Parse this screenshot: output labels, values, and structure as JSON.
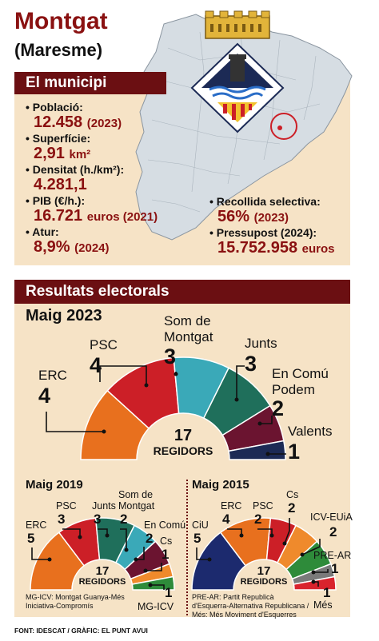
{
  "header": {
    "title": "Montgat",
    "subtitle": "(Maresme)"
  },
  "municipi": {
    "banner": "El municipi",
    "stats_left": [
      {
        "label": "Població:",
        "value": "12.458",
        "suffix": "(2023)"
      },
      {
        "label": "Superfície:",
        "value": "2,91",
        "suffix": "km²"
      },
      {
        "label": "Densitat (h./km²):",
        "value": "4.281,1",
        "suffix": ""
      },
      {
        "label": "PIB (€/h.):",
        "value": "16.721",
        "suffix": "euros (2021)"
      },
      {
        "label": "Atur:",
        "value": "8,9%",
        "suffix": "(2024)"
      }
    ],
    "stats_right": [
      {
        "label": "Recollida selectiva:",
        "value": "56%",
        "suffix": "(2023)"
      },
      {
        "label": "Pressupost (2024):",
        "value": "15.752.958",
        "suffix": "euros"
      }
    ]
  },
  "resultats": {
    "banner": "Resultats electorals",
    "maig2023": {
      "title": "Maig 2023",
      "total": "17",
      "total_label": "REGIDORS",
      "parties": [
        {
          "name": "ERC",
          "seats": 4,
          "color": "#e8701e"
        },
        {
          "name": "PSC",
          "seats": 4,
          "color": "#cc1f27"
        },
        {
          "name": "Som de Montgat",
          "seats": 3,
          "color": "#3aa9b8"
        },
        {
          "name": "Junts",
          "seats": 3,
          "color": "#1f6f5b"
        },
        {
          "name": "En Comú Podem",
          "seats": 2,
          "color": "#6b1430"
        },
        {
          "name": "Valents",
          "seats": 1,
          "color": "#1c2a55"
        }
      ]
    },
    "maig2019": {
      "title": "Maig 2019",
      "total": "17",
      "total_label": "REGIDORS",
      "parties": [
        {
          "name": "ERC",
          "seats": 5,
          "color": "#e8701e"
        },
        {
          "name": "PSC",
          "seats": 3,
          "color": "#cc1f27"
        },
        {
          "name": "Junts",
          "seats": 3,
          "color": "#1f6f5b"
        },
        {
          "name": "Som de Montgat",
          "seats": 2,
          "color": "#3aa9b8"
        },
        {
          "name": "En Comú",
          "seats": 2,
          "color": "#6b1430"
        },
        {
          "name": "Cs",
          "seats": 1,
          "color": "#ef8a2c"
        },
        {
          "name": "MG-ICV",
          "seats": 1,
          "color": "#2e8b3a"
        }
      ],
      "note": "MG-ICV: Montgat Guanya-Més Iniciativa-Compromís"
    },
    "maig2015": {
      "title": "Maig 2015",
      "total": "17",
      "total_label": "REGIDORS",
      "parties": [
        {
          "name": "CiU",
          "seats": 5,
          "color": "#1c2a6e"
        },
        {
          "name": "ERC",
          "seats": 4,
          "color": "#e8701e"
        },
        {
          "name": "PSC",
          "seats": 2,
          "color": "#cc1f27"
        },
        {
          "name": "Cs",
          "seats": 2,
          "color": "#ef8a2c"
        },
        {
          "name": "ICV-EUiA",
          "seats": 2,
          "color": "#2e8b3a"
        },
        {
          "name": "PRE-AR",
          "seats": 1,
          "color": "#7a7a7a"
        },
        {
          "name": "Més",
          "seats": 1,
          "color": "#d9232d"
        }
      ],
      "note": "PRE-AR: Partit Republicà d'Esquerra-Alternativa Republicana / Més: Més Moviment d'Esquerres"
    }
  },
  "footer": {
    "source": "FONT: IDESCAT / GRÀFIC: EL PUNT AVUI"
  }
}
